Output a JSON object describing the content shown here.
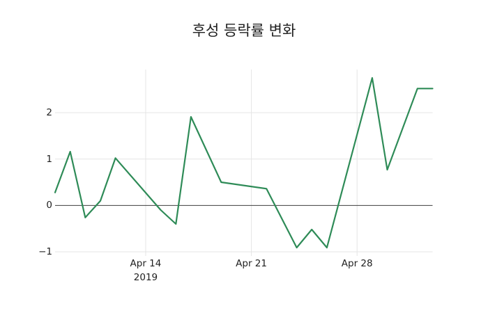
{
  "title": "후성 등락률 변화",
  "colors": {
    "line": "#2e8b57",
    "grid": "#e5e5e5",
    "zero_line": "#3d3d3d",
    "text": "#1f1f1f",
    "background": "#ffffff"
  },
  "axes": {
    "y_ticks": [
      {
        "value": 2,
        "label": "2"
      },
      {
        "value": 1,
        "label": "1"
      },
      {
        "value": 0,
        "label": "0"
      },
      {
        "value": -1,
        "label": "−1"
      }
    ],
    "x_ticks": [
      {
        "date": "2019-04-14",
        "label": "Apr 14",
        "sublabel": "2019"
      },
      {
        "date": "2019-04-21",
        "label": "Apr 21"
      },
      {
        "date": "2019-04-28",
        "label": "Apr 28"
      }
    ]
  },
  "chart_data": {
    "type": "line",
    "title": "후성 등락률 변화",
    "xlabel": "",
    "ylabel": "",
    "legend": "none",
    "grid": true,
    "x_unit": "date",
    "x": [
      "2019-04-08",
      "2019-04-09",
      "2019-04-10",
      "2019-04-11",
      "2019-04-12",
      "2019-04-15",
      "2019-04-16",
      "2019-04-17",
      "2019-04-19",
      "2019-04-22",
      "2019-04-24",
      "2019-04-25",
      "2019-04-26",
      "2019-04-29",
      "2019-04-30",
      "2019-05-02",
      "2019-05-03"
    ],
    "values": [
      0.28,
      1.16,
      -0.26,
      0.1,
      1.02,
      -0.1,
      -0.4,
      1.91,
      0.5,
      0.36,
      -0.91,
      -0.52,
      -0.91,
      2.75,
      0.77,
      2.52,
      2.52
    ],
    "ylim": [
      -1.09,
      2.93
    ],
    "xlim": [
      "2019-04-08",
      "2019-05-03"
    ],
    "line_color": "#2e8b57"
  }
}
